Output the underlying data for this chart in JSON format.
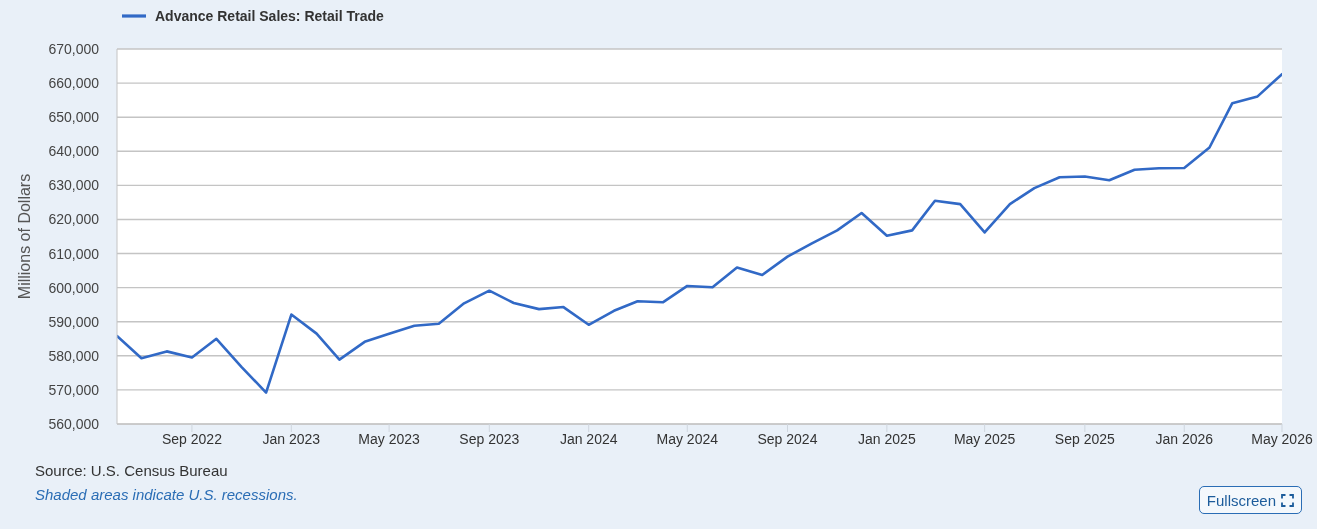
{
  "chart_data": {
    "type": "line",
    "ylabel": "Millions of Dollars",
    "x": [
      "2022-06",
      "2022-07",
      "2022-08",
      "2022-09",
      "2022-10",
      "2022-11",
      "2022-12",
      "2023-01",
      "2023-02",
      "2023-03",
      "2023-04",
      "2023-05",
      "2023-06",
      "2023-07",
      "2023-08",
      "2023-09",
      "2023-10",
      "2023-11",
      "2023-12",
      "2024-01",
      "2024-02",
      "2024-03",
      "2024-04",
      "2024-05",
      "2024-06",
      "2024-07",
      "2024-08",
      "2024-09",
      "2024-10",
      "2024-11",
      "2024-12",
      "2025-01",
      "2025-02",
      "2025-03",
      "2025-04",
      "2025-05",
      "2025-06",
      "2025-07",
      "2025-08",
      "2025-09",
      "2025-10",
      "2025-11",
      "2025-12",
      "2026-01",
      "2026-02",
      "2026-03",
      "2026-04",
      "2026-05"
    ],
    "series": [
      {
        "name": "Advance Retail Sales: Retail Trade",
        "color": "#3169c6",
        "values": [
          585800,
          579300,
          581300,
          579500,
          585000,
          576700,
          569200,
          592100,
          586500,
          578900,
          584100,
          586500,
          588800,
          589400,
          595400,
          599100,
          595500,
          593700,
          594300,
          589100,
          593200,
          596000,
          595700,
          600500,
          600100,
          605900,
          603700,
          609100,
          613000,
          616800,
          621900,
          615200,
          616800,
          625500,
          624500,
          616200,
          624500,
          629200,
          632400,
          632600,
          631500,
          634600,
          635000,
          635100,
          641100,
          654100,
          656100,
          662600
        ]
      }
    ],
    "xlim": [
      "2022-06",
      "2026-05"
    ],
    "xticks": [
      {
        "value": "2022-09",
        "label": "Sep 2022"
      },
      {
        "value": "2023-01",
        "label": "Jan 2023"
      },
      {
        "value": "2023-05",
        "label": "May 2023"
      },
      {
        "value": "2023-09",
        "label": "Sep 2023"
      },
      {
        "value": "2024-01",
        "label": "Jan 2024"
      },
      {
        "value": "2024-05",
        "label": "May 2024"
      },
      {
        "value": "2024-09",
        "label": "Sep 2024"
      },
      {
        "value": "2025-01",
        "label": "Jan 2025"
      },
      {
        "value": "2025-05",
        "label": "May 2025"
      },
      {
        "value": "2025-09",
        "label": "Sep 2025"
      },
      {
        "value": "2026-01",
        "label": "Jan 2026"
      },
      {
        "value": "2026-05",
        "label": "May 2026"
      }
    ],
    "ylim": [
      560000,
      670000
    ],
    "yticks": [
      {
        "value": 560000,
        "label": "560,000"
      },
      {
        "value": 570000,
        "label": "570,000"
      },
      {
        "value": 580000,
        "label": "580,000"
      },
      {
        "value": 590000,
        "label": "590,000"
      },
      {
        "value": 600000,
        "label": "600,000"
      },
      {
        "value": 610000,
        "label": "610,000"
      },
      {
        "value": 620000,
        "label": "620,000"
      },
      {
        "value": 630000,
        "label": "630,000"
      },
      {
        "value": 640000,
        "label": "640,000"
      },
      {
        "value": 650000,
        "label": "650,000"
      },
      {
        "value": 660000,
        "label": "660,000"
      },
      {
        "value": 670000,
        "label": "670,000"
      }
    ],
    "grid": "y",
    "legend": "top left",
    "marker": "none",
    "line_style": "solid",
    "annotations": [
      "Source: U.S. Census Bureau",
      "Shaded areas indicate U.S. recessions.",
      "Fullscreen"
    ]
  }
}
